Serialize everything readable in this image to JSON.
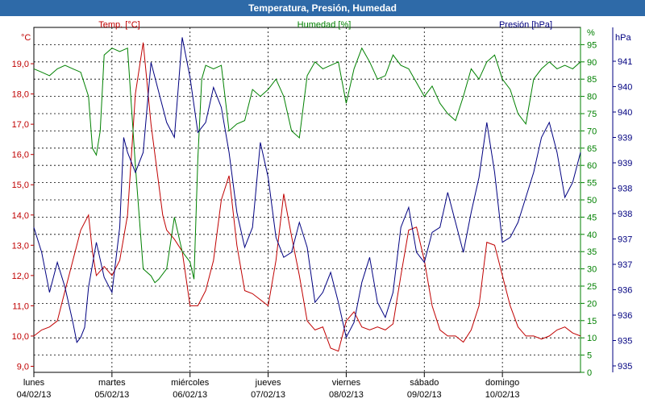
{
  "window": {
    "title": "Temperatura, Presión, Humedad"
  },
  "colors": {
    "temp": "#c00000",
    "humidity": "#008000",
    "pressure": "#000080",
    "grid": "#000000",
    "titlebar": "#2e6aa8"
  },
  "chart_data": {
    "type": "line",
    "title": "Temperatura, Presión, Humedad",
    "grid": true,
    "x": {
      "range": [
        0,
        7
      ],
      "categories": [
        {
          "day": "lunes",
          "date": "04/02/13"
        },
        {
          "day": "martes",
          "date": "05/02/13"
        },
        {
          "day": "miércoles",
          "date": "06/02/13"
        },
        {
          "day": "jueves",
          "date": "07/02/13"
        },
        {
          "day": "viernes",
          "date": "08/02/13"
        },
        {
          "day": "sábado",
          "date": "09/02/13"
        },
        {
          "day": "domingo",
          "date": "10/02/13"
        }
      ]
    },
    "axes": {
      "temp": {
        "unit": "°C",
        "ylim": [
          8.8,
          20.2
        ],
        "ticks": [
          "19,0",
          "18,0",
          "17,0",
          "16,0",
          "15,0",
          "14,0",
          "13,0",
          "12,0",
          "11,0",
          "10,0",
          "9,0"
        ],
        "tick_values": [
          19,
          18,
          17,
          16,
          15,
          14,
          13,
          12,
          11,
          10,
          9
        ]
      },
      "humidity": {
        "unit": "%",
        "ylim": [
          0,
          100
        ],
        "ticks": [
          "95",
          "90",
          "85",
          "80",
          "75",
          "70",
          "65",
          "60",
          "55",
          "50",
          "45",
          "40",
          "35",
          "30",
          "25",
          "20",
          "15",
          "10",
          "5",
          "0"
        ]
      },
      "pressure": {
        "unit": "hPa",
        "ylim": [
          934.6,
          941.5
        ],
        "ticks": [
          "941",
          "940",
          "940",
          "939",
          "939",
          "938",
          "938",
          "937",
          "937",
          "936",
          "936",
          "935",
          "935"
        ]
      }
    },
    "series": [
      {
        "name": "Temp. [°C]",
        "key": "temp",
        "x": [
          0,
          0.1,
          0.2,
          0.3,
          0.4,
          0.5,
          0.6,
          0.7,
          0.75,
          0.8,
          0.9,
          1.0,
          1.1,
          1.2,
          1.25,
          1.3,
          1.4,
          1.5,
          1.6,
          1.65,
          1.7,
          1.8,
          1.9,
          2.0,
          2.1,
          2.2,
          2.3,
          2.4,
          2.5,
          2.6,
          2.7,
          2.8,
          2.9,
          3.0,
          3.1,
          3.2,
          3.3,
          3.4,
          3.5,
          3.6,
          3.7,
          3.8,
          3.9,
          4.0,
          4.1,
          4.2,
          4.3,
          4.4,
          4.5,
          4.6,
          4.7,
          4.8,
          4.9,
          5.0,
          5.1,
          5.2,
          5.3,
          5.4,
          5.5,
          5.6,
          5.7,
          5.8,
          5.9,
          6.0,
          6.1,
          6.2,
          6.3,
          6.4,
          6.5,
          6.6,
          6.7,
          6.8,
          6.9,
          7.0
        ],
        "values": [
          10.0,
          10.2,
          10.3,
          10.5,
          11.5,
          12.5,
          13.5,
          14.0,
          12.8,
          12.0,
          12.3,
          12.0,
          12.5,
          14.0,
          16.0,
          18.0,
          19.7,
          17.0,
          15.0,
          14.0,
          13.5,
          13.2,
          12.8,
          11.0,
          11.0,
          11.5,
          12.5,
          14.5,
          15.3,
          13.0,
          11.5,
          11.4,
          11.2,
          11.0,
          12.5,
          14.7,
          13.3,
          12.0,
          10.5,
          10.2,
          10.3,
          9.6,
          9.5,
          10.5,
          10.8,
          10.3,
          10.2,
          10.3,
          10.2,
          10.4,
          12.0,
          13.5,
          13.6,
          12.5,
          11.0,
          10.2,
          10.0,
          10.0,
          9.8,
          10.2,
          11.0,
          13.1,
          13.0,
          12.0,
          11.0,
          10.3,
          10.0,
          10.0,
          9.9,
          10.0,
          10.2,
          10.3,
          10.1,
          10.0
        ]
      },
      {
        "name": "Humedad [%]",
        "key": "humidity",
        "x": [
          0,
          0.1,
          0.2,
          0.3,
          0.4,
          0.5,
          0.6,
          0.7,
          0.75,
          0.8,
          0.85,
          0.9,
          1.0,
          1.1,
          1.2,
          1.3,
          1.4,
          1.5,
          1.55,
          1.6,
          1.7,
          1.8,
          1.9,
          2.0,
          2.05,
          2.1,
          2.15,
          2.2,
          2.3,
          2.4,
          2.5,
          2.6,
          2.7,
          2.8,
          2.9,
          3.0,
          3.1,
          3.2,
          3.3,
          3.4,
          3.5,
          3.6,
          3.7,
          3.8,
          3.9,
          4.0,
          4.1,
          4.2,
          4.3,
          4.4,
          4.5,
          4.6,
          4.7,
          4.8,
          4.9,
          5.0,
          5.1,
          5.2,
          5.3,
          5.4,
          5.5,
          5.6,
          5.7,
          5.8,
          5.9,
          6.0,
          6.1,
          6.2,
          6.3,
          6.4,
          6.5,
          6.6,
          6.7,
          6.8,
          6.9,
          7.0
        ],
        "values": [
          88,
          87,
          86,
          88,
          89,
          88,
          87,
          80,
          65,
          63,
          70,
          92,
          94,
          93,
          94,
          60,
          30,
          28,
          26,
          27,
          30,
          45,
          35,
          32,
          27,
          62,
          85,
          89,
          88,
          89,
          70,
          72,
          73,
          82,
          80,
          82,
          85,
          80,
          70,
          68,
          86,
          90,
          88,
          89,
          90,
          78,
          88,
          94,
          90,
          85,
          86,
          92,
          89,
          88,
          84,
          80,
          83,
          78,
          75,
          73,
          80,
          88,
          85,
          90,
          92,
          85,
          82,
          75,
          72,
          85,
          88,
          90,
          88,
          89,
          88,
          90
        ]
      },
      {
        "name": "Presión [hPa]",
        "key": "pressure",
        "x": [
          0,
          0.1,
          0.2,
          0.3,
          0.4,
          0.5,
          0.55,
          0.6,
          0.65,
          0.7,
          0.8,
          0.9,
          1.0,
          1.1,
          1.15,
          1.2,
          1.3,
          1.4,
          1.5,
          1.6,
          1.7,
          1.8,
          1.9,
          2.0,
          2.1,
          2.2,
          2.3,
          2.4,
          2.5,
          2.6,
          2.7,
          2.8,
          2.9,
          3.0,
          3.1,
          3.2,
          3.3,
          3.4,
          3.5,
          3.6,
          3.7,
          3.8,
          3.9,
          4.0,
          4.1,
          4.2,
          4.3,
          4.4,
          4.5,
          4.6,
          4.7,
          4.8,
          4.9,
          5.0,
          5.1,
          5.2,
          5.3,
          5.4,
          5.5,
          5.6,
          5.7,
          5.8,
          5.9,
          6.0,
          6.1,
          6.2,
          6.3,
          6.4,
          6.5,
          6.6,
          6.7,
          6.8,
          6.9,
          7.0
        ],
        "values": [
          937.5,
          937.0,
          936.2,
          936.8,
          936.3,
          935.6,
          935.2,
          935.3,
          935.5,
          936.3,
          937.2,
          936.5,
          936.2,
          937.5,
          939.3,
          939.0,
          938.6,
          939.0,
          940.8,
          940.2,
          939.6,
          939.3,
          941.3,
          940.5,
          939.4,
          939.6,
          940.3,
          939.9,
          939.0,
          937.8,
          937.1,
          937.5,
          939.2,
          938.5,
          937.3,
          936.9,
          937.0,
          937.6,
          937.1,
          936.0,
          936.2,
          936.6,
          936.0,
          935.3,
          935.6,
          936.4,
          936.9,
          936.0,
          935.7,
          936.2,
          937.5,
          937.9,
          937.0,
          936.8,
          937.4,
          937.5,
          938.2,
          937.6,
          937.0,
          937.8,
          938.5,
          939.6,
          938.6,
          937.2,
          937.3,
          937.6,
          938.1,
          938.6,
          939.3,
          939.6,
          939.0,
          938.1,
          938.4,
          939.0
        ]
      }
    ]
  }
}
